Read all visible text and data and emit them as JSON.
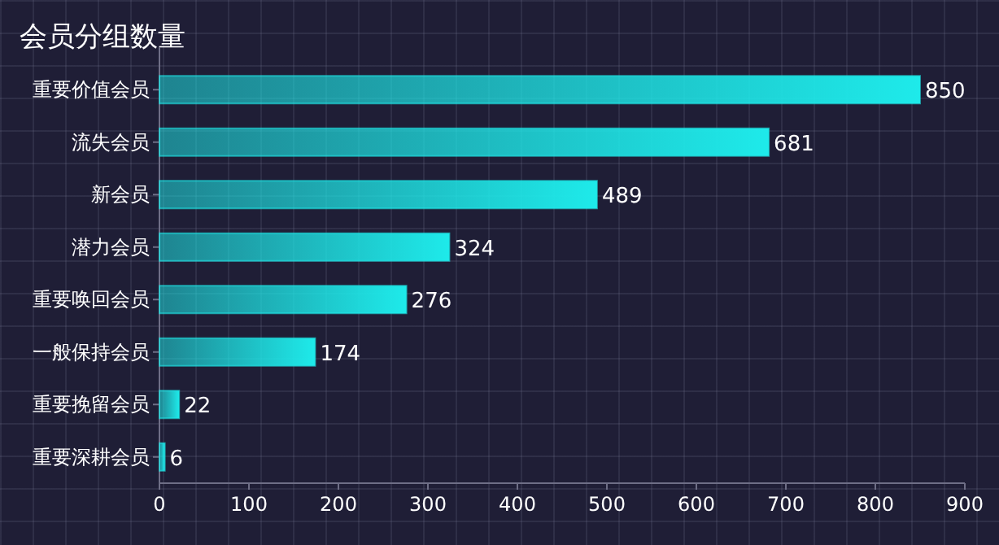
{
  "chart_data": {
    "type": "bar",
    "orientation": "horizontal",
    "title": "会员分组数量",
    "categories": [
      "重要价值会员",
      "流失会员",
      "新会员",
      "潜力会员",
      "重要唤回会员",
      "一般保持会员",
      "重要挽留会员",
      "重要深耕会员"
    ],
    "values": [
      850,
      681,
      489,
      324,
      276,
      174,
      22,
      6
    ],
    "color": "#1eeaea",
    "xlim": [
      0,
      900
    ],
    "xticks": [
      0,
      100,
      200,
      300,
      400,
      500,
      600,
      700,
      800,
      900
    ],
    "data_labels": true,
    "grid": false
  }
}
